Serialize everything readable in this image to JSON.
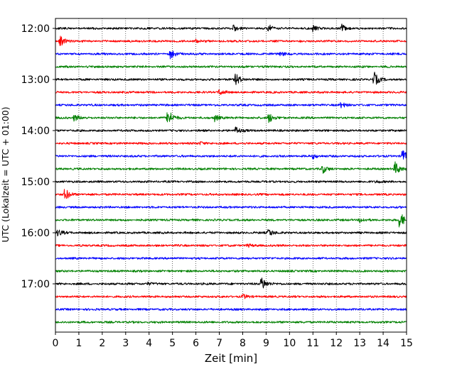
{
  "chart_data": {
    "type": "line",
    "title": "",
    "xlabel": "Zeit  [min]",
    "ylabel": "UTC (Lokalzeit = UTC + 01:00)",
    "xlim": [
      0,
      15
    ],
    "x_ticks": [
      "0",
      "1",
      "2",
      "3",
      "4",
      "5",
      "6",
      "7",
      "8",
      "9",
      "10",
      "11",
      "12",
      "13",
      "14",
      "15"
    ],
    "y_ticks": [
      "12:00",
      "13:00",
      "14:00",
      "15:00",
      "16:00",
      "17:00"
    ],
    "grid": "vertical dotted",
    "trace_interval_min": 15,
    "trace_colors": [
      "#000000",
      "#ff0000",
      "#0000ff",
      "#008000"
    ],
    "traces": [
      {
        "start": "12:00",
        "events": [
          {
            "t": 7.6,
            "a": 4
          },
          {
            "t": 9.1,
            "a": 5
          },
          {
            "t": 11.0,
            "a": 5
          },
          {
            "t": 12.2,
            "a": 6
          }
        ]
      },
      {
        "start": "12:15",
        "events": [
          {
            "t": 0.2,
            "a": 7
          },
          {
            "t": 6.0,
            "a": 2
          }
        ]
      },
      {
        "start": "12:30",
        "events": [
          {
            "t": 4.9,
            "a": 9
          },
          {
            "t": 9.6,
            "a": 4
          }
        ]
      },
      {
        "start": "12:45",
        "events": []
      },
      {
        "start": "13:00",
        "events": [
          {
            "t": 7.7,
            "a": 9
          },
          {
            "t": 13.6,
            "a": 11
          }
        ]
      },
      {
        "start": "13:15",
        "events": [
          {
            "t": 7.0,
            "a": 4
          }
        ]
      },
      {
        "start": "13:30",
        "events": [
          {
            "t": 12.2,
            "a": 4
          }
        ]
      },
      {
        "start": "13:45",
        "events": [
          {
            "t": 0.8,
            "a": 5
          },
          {
            "t": 4.8,
            "a": 14
          },
          {
            "t": 6.8,
            "a": 5
          },
          {
            "t": 9.1,
            "a": 8
          }
        ]
      },
      {
        "start": "14:00",
        "events": [
          {
            "t": 7.7,
            "a": 6
          }
        ]
      },
      {
        "start": "14:15",
        "events": [
          {
            "t": 6.2,
            "a": 2
          }
        ]
      },
      {
        "start": "14:30",
        "events": [
          {
            "t": 11.0,
            "a": 3
          },
          {
            "t": 14.8,
            "a": 10
          }
        ]
      },
      {
        "start": "14:45",
        "events": [
          {
            "t": 11.4,
            "a": 6
          },
          {
            "t": 14.5,
            "a": 10
          }
        ]
      },
      {
        "start": "15:00",
        "events": [
          {
            "t": 13.7,
            "a": 2
          }
        ]
      },
      {
        "start": "15:15",
        "events": [
          {
            "t": 0.4,
            "a": 9
          }
        ]
      },
      {
        "start": "15:30",
        "events": []
      },
      {
        "start": "15:45",
        "events": [
          {
            "t": 13.0,
            "a": 3
          },
          {
            "t": 14.7,
            "a": 13
          }
        ]
      },
      {
        "start": "16:00",
        "events": [
          {
            "t": 0.1,
            "a": 5
          },
          {
            "t": 9.1,
            "a": 6
          }
        ]
      },
      {
        "start": "16:15",
        "events": [
          {
            "t": 8.2,
            "a": 2
          }
        ]
      },
      {
        "start": "16:30",
        "events": []
      },
      {
        "start": "16:45",
        "events": []
      },
      {
        "start": "17:00",
        "events": [
          {
            "t": 8.8,
            "a": 11
          },
          {
            "t": 3.9,
            "a": 2
          }
        ]
      },
      {
        "start": "17:15",
        "events": [
          {
            "t": 8.0,
            "a": 3
          }
        ]
      },
      {
        "start": "17:30",
        "events": []
      },
      {
        "start": "17:45",
        "events": []
      }
    ]
  }
}
